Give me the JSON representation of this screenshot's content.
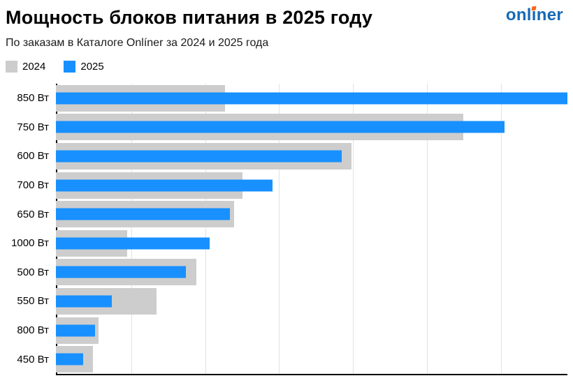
{
  "header": {
    "title": "Мощность блоков питания в 2025 году",
    "subtitle": "По заказам в Каталоге Onlíner за 2024 и 2025 года"
  },
  "logo": {
    "pre": "onl",
    "i": "ı",
    "post": "ner",
    "text": "onliner",
    "blue": "#1769b5",
    "dot_orange": "#f96816"
  },
  "legend": [
    {
      "label": "2024",
      "color": "#cdcdcd"
    },
    {
      "label": "2025",
      "color": "#1890ff"
    }
  ],
  "chart_data": {
    "type": "bar",
    "orientation": "horizontal",
    "title": "Мощность блоков питания в 2025 году",
    "subtitle": "По заказам в Каталоге Onlíner за 2024 и 2025 года",
    "categories": [
      "850 Вт",
      "750 Вт",
      "600 Вт",
      "700 Вт",
      "650 Вт",
      "1000 Вт",
      "500 Вт",
      "550 Вт",
      "800 Вт",
      "450 Вт"
    ],
    "series": [
      {
        "name": "2024",
        "color": "#cdcdcd",
        "values": [
          33.0,
          79.6,
          57.8,
          36.5,
          34.8,
          13.9,
          27.5,
          19.7,
          8.3,
          7.2
        ]
      },
      {
        "name": "2025",
        "color": "#1890ff",
        "values": [
          100.0,
          87.7,
          55.9,
          42.3,
          34.0,
          30.0,
          25.4,
          10.9,
          7.7,
          5.3
        ]
      }
    ],
    "xlim": [
      0,
      100
    ],
    "x_tick_labels": [],
    "grid": true,
    "gridlines": 6,
    "legend_position": "top-left",
    "note": "values are relative lengths (no numeric axis labels shown in image)"
  }
}
